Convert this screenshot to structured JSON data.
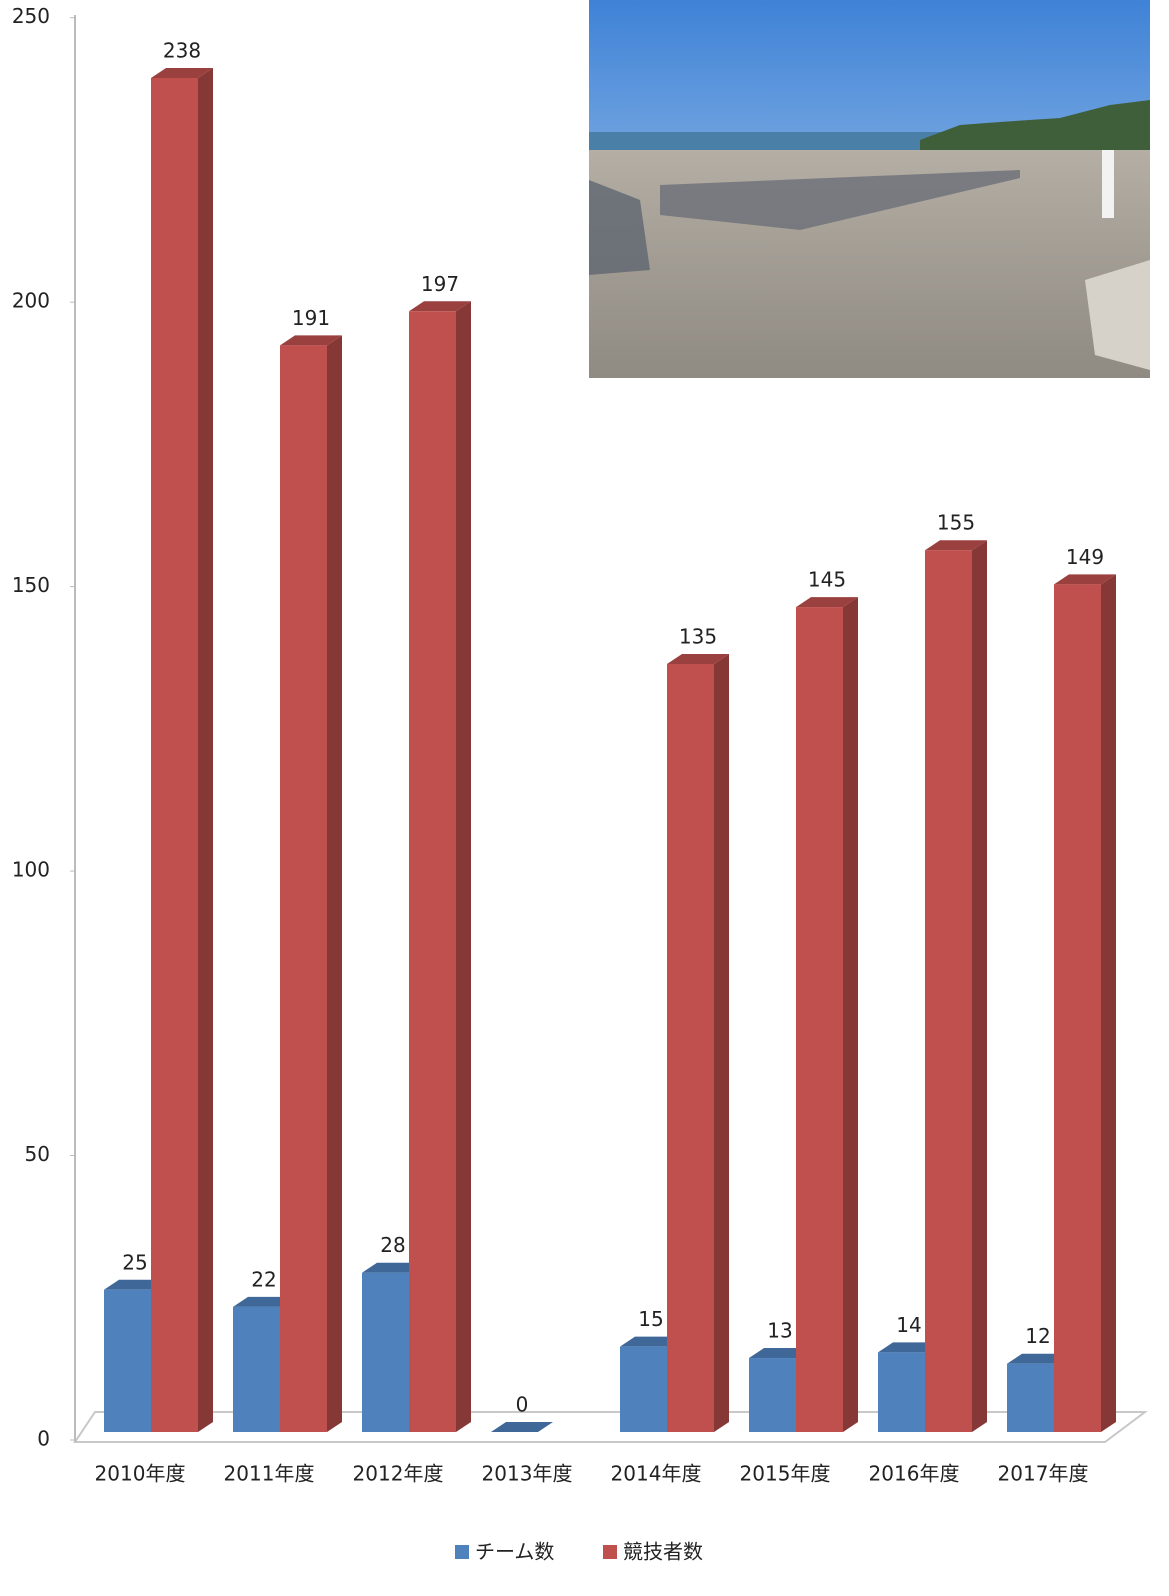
{
  "chart_data": {
    "type": "bar3d",
    "categories": [
      "2010年度",
      "2011年度",
      "2012年度",
      "2013年度",
      "2014年度",
      "2015年度",
      "2016年度",
      "2017年度"
    ],
    "series": [
      {
        "name": "チーム数",
        "color": "#4f81bd",
        "values": [
          25,
          22,
          28,
          0,
          15,
          13,
          14,
          12
        ]
      },
      {
        "name": "競技者数",
        "color": "#c0504d",
        "values": [
          238,
          191,
          197,
          null,
          135,
          145,
          155,
          149
        ]
      }
    ],
    "ylim": [
      0,
      250
    ],
    "yticks": [
      0,
      50,
      100,
      150,
      200,
      250
    ],
    "legend": "bottom"
  }
}
